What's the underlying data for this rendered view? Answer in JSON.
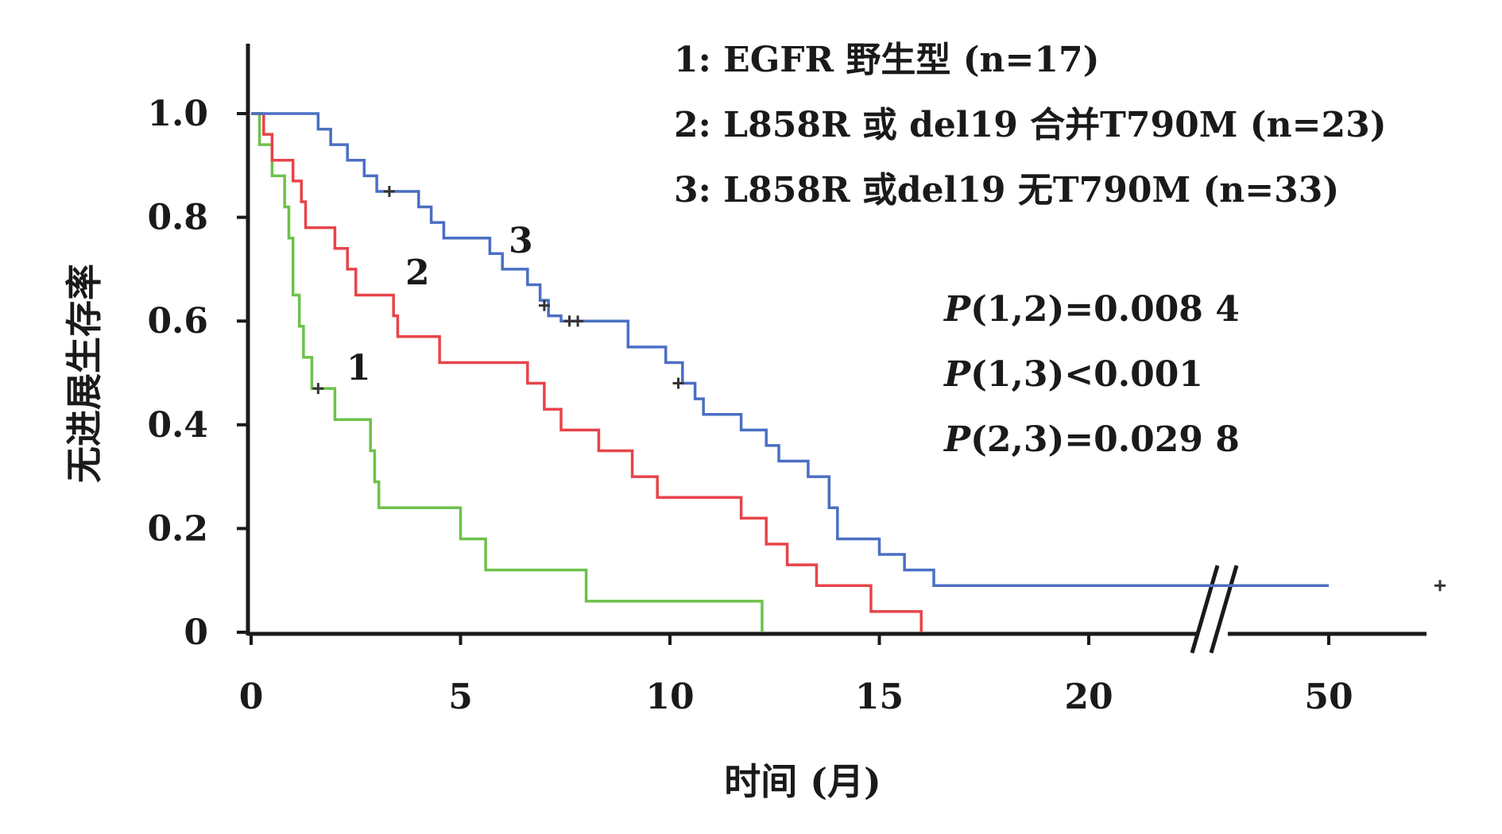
{
  "chart_data": {
    "type": "line",
    "xlabel": "时间 (月)",
    "ylabel": "无进展生存率",
    "xlim": [
      0,
      20
    ],
    "ylim": [
      0,
      1.0
    ],
    "x_ticks": [
      "0",
      "5",
      "10",
      "15",
      "20",
      "50"
    ],
    "y_ticks": [
      "0",
      "0.2",
      "0.4",
      "0.6",
      "0.8",
      "1.0"
    ],
    "x_axis_break": true,
    "grid": false,
    "legend_placement": "top-right",
    "legend": [
      "1: EGFR 野生型 (n=17)",
      "2: L858R 或 del19 合并T790M (n=23)",
      "3: L858R 或del19 无T790M (n=33)"
    ],
    "annotations": {
      "p_values": [
        {
          "prefix": "P",
          "text": "(1,2)=0.008 4"
        },
        {
          "prefix": "P",
          "text": "(1,3)<0.001"
        },
        {
          "prefix": "P",
          "text": "(2,3)=0.029 8"
        }
      ]
    },
    "series": [
      {
        "name": "1",
        "color": "#6cc24a",
        "steps": [
          [
            0,
            1.0
          ],
          [
            0.2,
            0.94
          ],
          [
            0.5,
            0.88
          ],
          [
            0.8,
            0.82
          ],
          [
            0.9,
            0.76
          ],
          [
            1.0,
            0.65
          ],
          [
            1.15,
            0.59
          ],
          [
            1.25,
            0.53
          ],
          [
            1.45,
            0.47
          ],
          [
            2.0,
            0.41
          ],
          [
            2.85,
            0.35
          ],
          [
            2.95,
            0.29
          ],
          [
            3.05,
            0.24
          ],
          [
            5.0,
            0.18
          ],
          [
            5.6,
            0.12
          ],
          [
            8.0,
            0.06
          ],
          [
            12.2,
            0.0
          ]
        ],
        "censored": [
          [
            1.6,
            0.47
          ]
        ]
      },
      {
        "name": "2",
        "color": "#e8434a",
        "steps": [
          [
            0,
            1.0
          ],
          [
            0.3,
            0.96
          ],
          [
            0.5,
            0.91
          ],
          [
            1.0,
            0.87
          ],
          [
            1.2,
            0.83
          ],
          [
            1.3,
            0.78
          ],
          [
            2.0,
            0.74
          ],
          [
            2.3,
            0.7
          ],
          [
            2.5,
            0.65
          ],
          [
            3.4,
            0.61
          ],
          [
            3.5,
            0.57
          ],
          [
            4.5,
            0.52
          ],
          [
            6.6,
            0.48
          ],
          [
            7.0,
            0.43
          ],
          [
            7.4,
            0.39
          ],
          [
            8.3,
            0.35
          ],
          [
            9.1,
            0.3
          ],
          [
            9.7,
            0.26
          ],
          [
            11.7,
            0.22
          ],
          [
            12.3,
            0.17
          ],
          [
            12.8,
            0.13
          ],
          [
            13.5,
            0.09
          ],
          [
            14.8,
            0.04
          ],
          [
            16.0,
            0.0
          ]
        ],
        "censored": []
      },
      {
        "name": "3",
        "color": "#4a6fc3",
        "steps": [
          [
            0,
            1.0
          ],
          [
            1.6,
            0.97
          ],
          [
            1.9,
            0.94
          ],
          [
            2.3,
            0.91
          ],
          [
            2.7,
            0.88
          ],
          [
            3.0,
            0.85
          ],
          [
            4.0,
            0.82
          ],
          [
            4.3,
            0.79
          ],
          [
            4.6,
            0.76
          ],
          [
            5.7,
            0.73
          ],
          [
            6.0,
            0.7
          ],
          [
            6.6,
            0.67
          ],
          [
            6.9,
            0.64
          ],
          [
            7.1,
            0.61
          ],
          [
            7.4,
            0.6
          ],
          [
            9.0,
            0.55
          ],
          [
            9.9,
            0.52
          ],
          [
            10.3,
            0.48
          ],
          [
            10.6,
            0.45
          ],
          [
            10.8,
            0.42
          ],
          [
            11.7,
            0.39
          ],
          [
            12.3,
            0.36
          ],
          [
            12.6,
            0.33
          ],
          [
            13.3,
            0.3
          ],
          [
            13.8,
            0.24
          ],
          [
            14.0,
            0.18
          ],
          [
            15.0,
            0.15
          ],
          [
            15.6,
            0.12
          ],
          [
            16.3,
            0.09
          ],
          [
            50,
            0.09
          ]
        ],
        "censored": [
          [
            3.3,
            0.85
          ],
          [
            7.0,
            0.63
          ],
          [
            7.6,
            0.6
          ],
          [
            7.8,
            0.6
          ],
          [
            10.2,
            0.48
          ],
          [
            55,
            0.09
          ]
        ]
      }
    ],
    "curve_labels": [
      "1",
      "2",
      "3"
    ]
  }
}
